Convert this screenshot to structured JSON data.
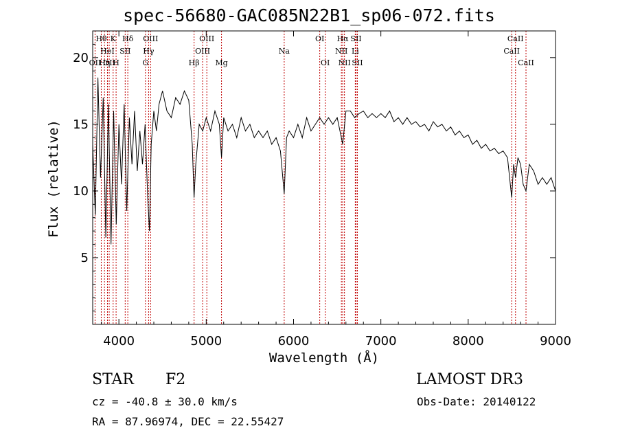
{
  "chart_data": {
    "type": "line",
    "title": "spec-56680-GAC085N22B1_sp06-072.fits",
    "xlabel": "Wavelength (Å)",
    "ylabel": "Flux (relative)",
    "xlim": [
      3700,
      9000
    ],
    "ylim": [
      0,
      22
    ],
    "xticks": [
      4000,
      5000,
      6000,
      7000,
      8000,
      9000
    ],
    "yticks": [
      5,
      10,
      15,
      20
    ],
    "grid": false,
    "series": [
      {
        "name": "flux",
        "x": [
          3700,
          3730,
          3760,
          3790,
          3820,
          3850,
          3880,
          3910,
          3940,
          3970,
          4000,
          4030,
          4060,
          4090,
          4120,
          4150,
          4180,
          4210,
          4240,
          4270,
          4300,
          4330,
          4350,
          4370,
          4400,
          4430,
          4460,
          4500,
          4550,
          4600,
          4650,
          4700,
          4750,
          4800,
          4840,
          4861,
          4880,
          4920,
          4960,
          5000,
          5050,
          5100,
          5150,
          5175,
          5200,
          5250,
          5300,
          5350,
          5400,
          5450,
          5500,
          5550,
          5600,
          5650,
          5700,
          5750,
          5800,
          5850,
          5893,
          5920,
          5950,
          6000,
          6050,
          6100,
          6150,
          6200,
          6250,
          6300,
          6350,
          6400,
          6450,
          6500,
          6563,
          6600,
          6650,
          6700,
          6750,
          6800,
          6850,
          6900,
          6950,
          7000,
          7050,
          7100,
          7150,
          7200,
          7250,
          7300,
          7350,
          7400,
          7450,
          7500,
          7550,
          7600,
          7650,
          7700,
          7750,
          7800,
          7850,
          7900,
          7950,
          8000,
          8050,
          8100,
          8150,
          8200,
          8250,
          8300,
          8350,
          8400,
          8450,
          8498,
          8520,
          8542,
          8570,
          8600,
          8630,
          8662,
          8700,
          8750,
          8800,
          8850,
          8900,
          8950,
          9000
        ],
        "values": [
          13.5,
          8.2,
          18.5,
          11.0,
          17.0,
          6.5,
          16.5,
          6.0,
          16.0,
          7.5,
          15.0,
          10.5,
          16.5,
          8.5,
          15.5,
          12.0,
          16.0,
          11.5,
          14.5,
          12.0,
          15.0,
          9.5,
          7.0,
          13.5,
          16.0,
          14.5,
          16.5,
          17.5,
          16.0,
          15.5,
          17.0,
          16.5,
          17.5,
          16.8,
          13.5,
          9.5,
          12.0,
          15.0,
          14.5,
          15.5,
          14.5,
          16.0,
          15.0,
          12.5,
          15.5,
          14.5,
          15.0,
          14.0,
          15.5,
          14.5,
          15.0,
          14.0,
          14.5,
          14.0,
          14.5,
          13.5,
          14.0,
          13.0,
          9.8,
          14.0,
          14.5,
          14.0,
          15.0,
          14.0,
          15.5,
          14.5,
          15.0,
          15.5,
          15.0,
          15.5,
          15.0,
          15.5,
          13.5,
          16.0,
          16.0,
          15.5,
          15.8,
          16.0,
          15.5,
          15.8,
          15.5,
          15.8,
          15.5,
          16.0,
          15.2,
          15.5,
          15.0,
          15.5,
          15.0,
          15.2,
          14.8,
          15.0,
          14.5,
          15.2,
          14.8,
          15.0,
          14.5,
          14.8,
          14.2,
          14.5,
          14.0,
          14.2,
          13.5,
          13.8,
          13.2,
          13.5,
          13.0,
          13.2,
          12.8,
          13.0,
          12.5,
          9.5,
          12.0,
          11.0,
          12.5,
          12.0,
          10.5,
          10.0,
          12.0,
          11.5,
          10.5,
          11.0,
          10.5,
          11.0,
          10.0
        ]
      }
    ],
    "line_markers": [
      {
        "wavelength": 3727,
        "label": "OII",
        "row": 2
      },
      {
        "wavelength": 3798,
        "label": "Hθ",
        "row": 0
      },
      {
        "wavelength": 3835,
        "label": "Hη",
        "row": 2
      },
      {
        "wavelength": 3869,
        "label": "HeI",
        "row": 1
      },
      {
        "wavelength": 3889,
        "label": "OII",
        "row": 2
      },
      {
        "wavelength": 3934,
        "label": "K",
        "row": 0
      },
      {
        "wavelength": 3968,
        "label": "H",
        "row": 2
      },
      {
        "wavelength": 4072,
        "label": "SII",
        "row": 1
      },
      {
        "wavelength": 4102,
        "label": "Hδ",
        "row": 0
      },
      {
        "wavelength": 4304,
        "label": "G",
        "row": 2
      },
      {
        "wavelength": 4340,
        "label": "Hγ",
        "row": 1
      },
      {
        "wavelength": 4363,
        "label": "OIII",
        "row": 0
      },
      {
        "wavelength": 4861,
        "label": "Hβ",
        "row": 2
      },
      {
        "wavelength": 4959,
        "label": "OIII",
        "row": 1
      },
      {
        "wavelength": 5007,
        "label": "OIII",
        "row": 0
      },
      {
        "wavelength": 5175,
        "label": "Mg",
        "row": 2
      },
      {
        "wavelength": 5893,
        "label": "Na",
        "row": 1
      },
      {
        "wavelength": 6300,
        "label": "OI",
        "row": 0
      },
      {
        "wavelength": 6363,
        "label": "OI",
        "row": 2
      },
      {
        "wavelength": 6548,
        "label": "NII",
        "row": 1
      },
      {
        "wavelength": 6563,
        "label": "Hα",
        "row": 0
      },
      {
        "wavelength": 6583,
        "label": "NII",
        "row": 2
      },
      {
        "wavelength": 6707,
        "label": "Li",
        "row": 1
      },
      {
        "wavelength": 6716,
        "label": "SII",
        "row": 0
      },
      {
        "wavelength": 6731,
        "label": "SII",
        "row": 2
      },
      {
        "wavelength": 8498,
        "label": "CaII",
        "row": 1
      },
      {
        "wavelength": 8542,
        "label": "CaII",
        "row": 0
      },
      {
        "wavelength": 8662,
        "label": "CaII",
        "row": 2
      }
    ]
  },
  "info": {
    "object_class": "STAR",
    "subclass": "F2",
    "survey": "LAMOST DR3",
    "redshift": "cz = -40.8 ± 30.0 km/s",
    "obs_date": "Obs-Date: 20140122",
    "coords": "RA =  87.96974, DEC =  22.55427"
  }
}
